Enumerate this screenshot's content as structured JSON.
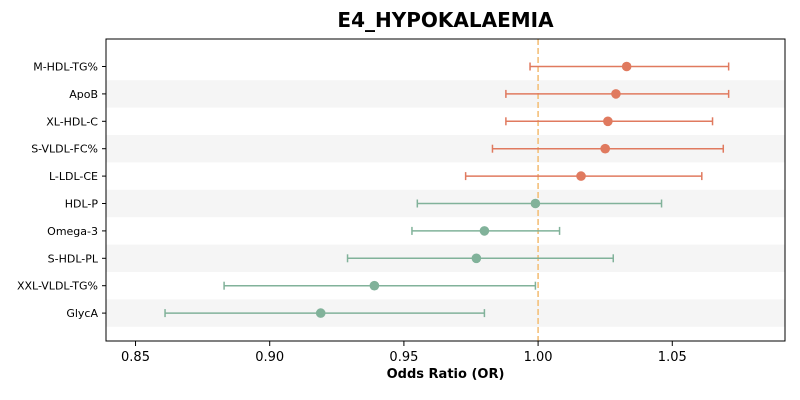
{
  "chart_data": {
    "type": "forest",
    "title": "E4_HYPOKALAEMIA",
    "xlabel": "Odds Ratio (OR)",
    "ylabel": "",
    "xlim": [
      0.839,
      1.092
    ],
    "xticks": [
      0.85,
      0.9,
      0.95,
      1.0,
      1.05
    ],
    "xtick_labels": [
      "0.85",
      "0.90",
      "0.95",
      "1.00",
      "1.05"
    ],
    "reference_line": 1.0,
    "colors": {
      "positive": "#e07a5f",
      "negative": "#81b29a",
      "reference": "#f4c07a",
      "band": "#f5f5f5"
    },
    "rows": [
      {
        "label": "M-HDL-TG%",
        "or": 1.033,
        "lower": 0.997,
        "upper": 1.071,
        "group": "positive"
      },
      {
        "label": "ApoB",
        "or": 1.029,
        "lower": 0.988,
        "upper": 1.071,
        "group": "positive"
      },
      {
        "label": "XL-HDL-C",
        "or": 1.026,
        "lower": 0.988,
        "upper": 1.065,
        "group": "positive"
      },
      {
        "label": "S-VLDL-FC%",
        "or": 1.025,
        "lower": 0.983,
        "upper": 1.069,
        "group": "positive"
      },
      {
        "label": "L-LDL-CE",
        "or": 1.016,
        "lower": 0.973,
        "upper": 1.061,
        "group": "positive"
      },
      {
        "label": "HDL-P",
        "or": 0.999,
        "lower": 0.955,
        "upper": 1.046,
        "group": "negative"
      },
      {
        "label": "Omega-3",
        "or": 0.98,
        "lower": 0.953,
        "upper": 1.008,
        "group": "negative"
      },
      {
        "label": "S-HDL-PL",
        "or": 0.977,
        "lower": 0.929,
        "upper": 1.028,
        "group": "negative"
      },
      {
        "label": "XXL-VLDL-TG%",
        "or": 0.939,
        "lower": 0.883,
        "upper": 0.999,
        "group": "negative"
      },
      {
        "label": "GlycA",
        "or": 0.919,
        "lower": 0.861,
        "upper": 0.98,
        "group": "negative"
      }
    ]
  }
}
